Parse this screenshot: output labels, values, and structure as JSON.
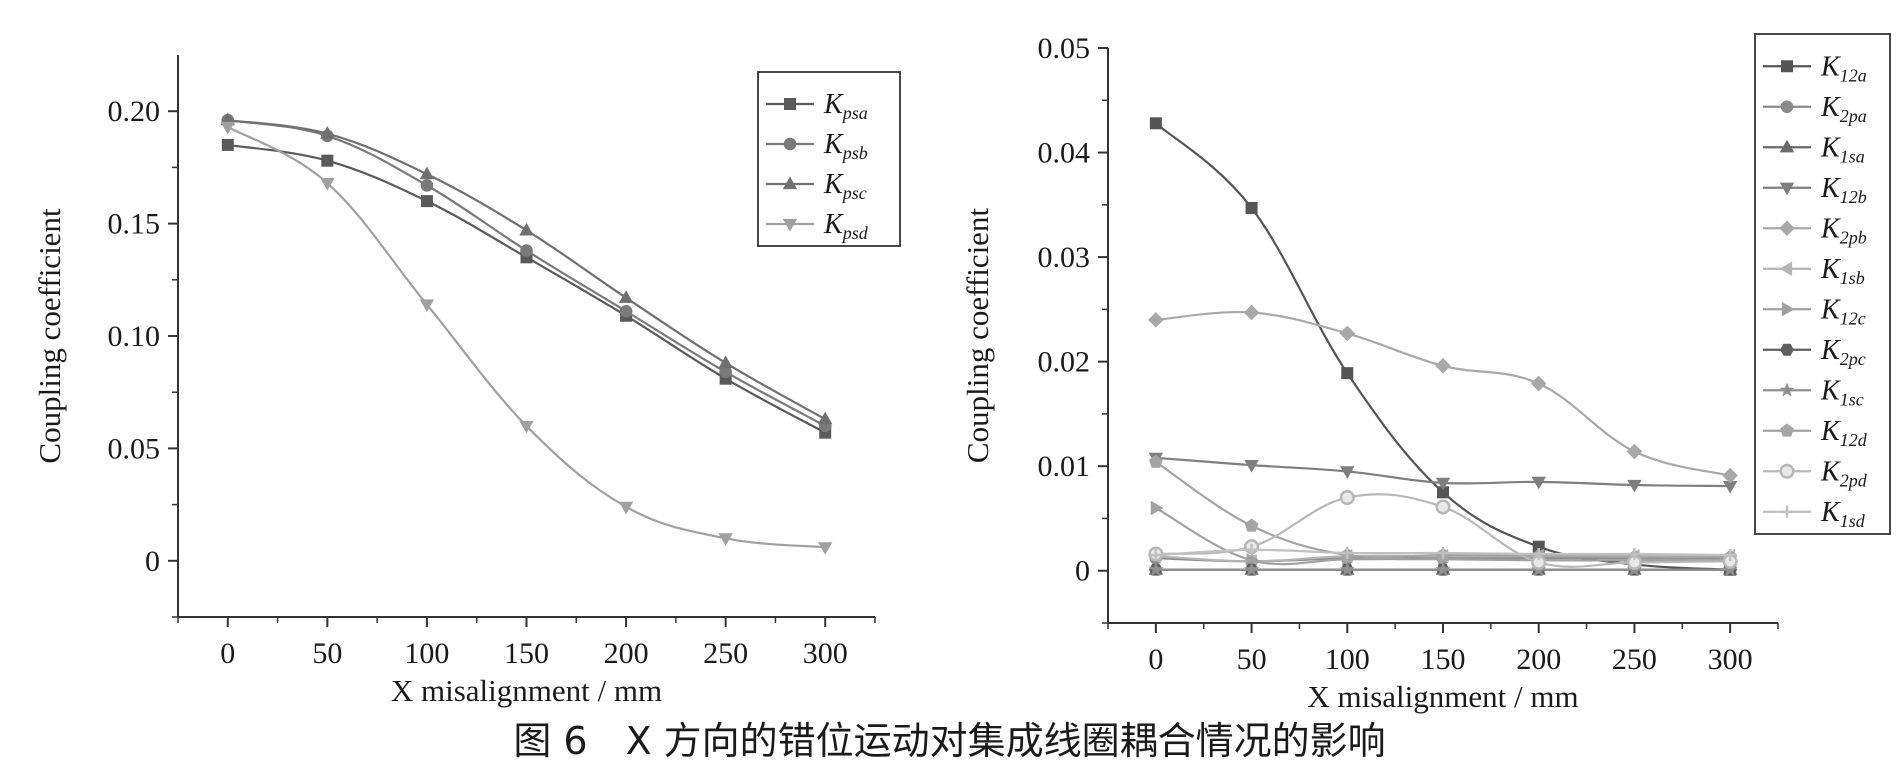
{
  "caption": "图 6　X 方向的错位运动对集成线圈耦合情况的影响",
  "chart_data": [
    {
      "type": "line",
      "xlabel": "X misalignment / mm",
      "ylabel": "Coupling coefficient",
      "xlim": [
        -25,
        325
      ],
      "ylim": [
        -0.025,
        0.225
      ],
      "xticks": [
        0,
        50,
        100,
        150,
        200,
        250,
        300
      ],
      "yticks": [
        0,
        0.05,
        0.1,
        0.15,
        0.2
      ],
      "ytick_labels": [
        "0",
        "0.05",
        "0.10",
        "0.15",
        "0.20"
      ],
      "legend_position": "top-right",
      "x": [
        0,
        50,
        100,
        150,
        200,
        250,
        300
      ],
      "series": [
        {
          "name": "K",
          "sub": "psa",
          "marker": "square",
          "color": "#5a5a5a",
          "values": [
            0.185,
            0.178,
            0.16,
            0.135,
            0.109,
            0.081,
            0.057
          ]
        },
        {
          "name": "K",
          "sub": "psb",
          "marker": "circle",
          "color": "#7a7a7a",
          "values": [
            0.196,
            0.189,
            0.167,
            0.138,
            0.111,
            0.084,
            0.06
          ]
        },
        {
          "name": "K",
          "sub": "psc",
          "marker": "triangle-up",
          "color": "#707070",
          "values": [
            0.196,
            0.19,
            0.172,
            0.147,
            0.117,
            0.088,
            0.063
          ]
        },
        {
          "name": "K",
          "sub": "psd",
          "marker": "triangle-down",
          "color": "#a0a0a0",
          "values": [
            0.193,
            0.168,
            0.114,
            0.06,
            0.024,
            0.01,
            0.006
          ]
        }
      ]
    },
    {
      "type": "line",
      "xlabel": "X misalignment / mm",
      "ylabel": "Coupling coefficient",
      "xlim": [
        -25,
        325
      ],
      "ylim": [
        -0.005,
        0.05
      ],
      "xticks": [
        0,
        50,
        100,
        150,
        200,
        250,
        300
      ],
      "yticks": [
        0,
        0.01,
        0.02,
        0.03,
        0.04,
        0.05
      ],
      "ytick_labels": [
        "0",
        "0.01",
        "0.02",
        "0.03",
        "0.04",
        "0.05"
      ],
      "legend_position": "top-right",
      "x": [
        0,
        50,
        100,
        150,
        200,
        250,
        300
      ],
      "series": [
        {
          "name": "K",
          "sub": "12a",
          "marker": "square",
          "color": "#555555",
          "values": [
            0.0428,
            0.0347,
            0.0189,
            0.0075,
            0.0023,
            0.0006,
            0.0001
          ]
        },
        {
          "name": "K",
          "sub": "2pa",
          "marker": "circle",
          "color": "#8a8a8a",
          "values": [
            0.0012,
            0.0009,
            0.0012,
            0.0012,
            0.0012,
            0.0012,
            0.0012
          ]
        },
        {
          "name": "K",
          "sub": "1sa",
          "marker": "triangle-up",
          "color": "#6a6a6a",
          "values": [
            0.0001,
            0.0001,
            0.0001,
            0.0001,
            0.0001,
            0.0001,
            0.0001
          ]
        },
        {
          "name": "K",
          "sub": "12b",
          "marker": "triangle-down",
          "color": "#7e7e7e",
          "values": [
            0.0108,
            0.0101,
            0.0095,
            0.0084,
            0.0085,
            0.0082,
            0.0081
          ]
        },
        {
          "name": "K",
          "sub": "2pb",
          "marker": "diamond",
          "color": "#a8a8a8",
          "values": [
            0.024,
            0.0247,
            0.0227,
            0.0196,
            0.0179,
            0.0114,
            0.0091
          ]
        },
        {
          "name": "K",
          "sub": "1sb",
          "marker": "triangle-left",
          "color": "#b4b4b4",
          "values": [
            0.0014,
            0.0009,
            0.0014,
            0.0014,
            0.0014,
            0.0014,
            0.0014
          ]
        },
        {
          "name": "K",
          "sub": "12c",
          "marker": "triangle-right",
          "color": "#a0a0a0",
          "values": [
            0.006,
            0.001,
            0.0011,
            0.0011,
            0.001,
            0.001,
            0.001
          ]
        },
        {
          "name": "K",
          "sub": "2pc",
          "marker": "hexagon",
          "color": "#5e5e5e",
          "values": [
            0.0001,
            0.0001,
            0.0001,
            0.0001,
            0.0001,
            0.0001,
            0.0001
          ]
        },
        {
          "name": "K",
          "sub": "1sc",
          "marker": "star",
          "color": "#909090",
          "values": [
            0.0001,
            0.0001,
            0.0001,
            0.0001,
            0.0001,
            0.0001,
            0.0001
          ]
        },
        {
          "name": "K",
          "sub": "12d",
          "marker": "pentagon",
          "color": "#a4a4a4",
          "values": [
            0.0104,
            0.0043,
            0.0015,
            0.0015,
            0.0014,
            0.0013,
            0.0013
          ]
        },
        {
          "name": "K",
          "sub": "2pd",
          "marker": "circle-open",
          "color": "#b8b8b8",
          "values": [
            0.0016,
            0.0023,
            0.007,
            0.0061,
            0.0008,
            0.0008,
            0.0009
          ]
        },
        {
          "name": "K",
          "sub": "1sd",
          "marker": "plus",
          "color": "#c0c0c0",
          "values": [
            0.0015,
            0.002,
            0.0017,
            0.0017,
            0.0016,
            0.0016,
            0.0015
          ]
        }
      ]
    }
  ]
}
